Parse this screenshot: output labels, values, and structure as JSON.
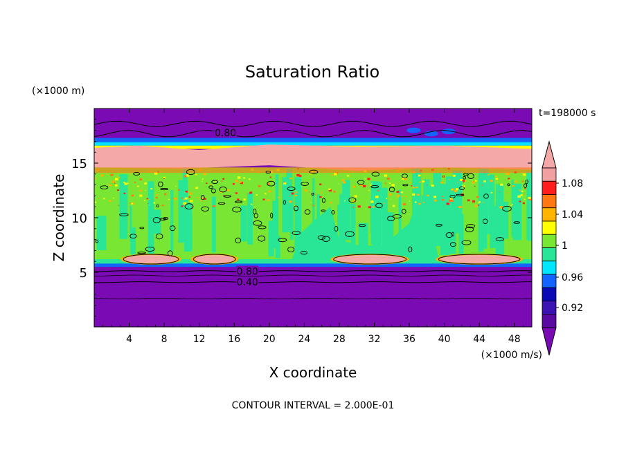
{
  "chart_data": {
    "type": "heatmap",
    "title": "Saturation Ratio",
    "xlabel": "X coordinate",
    "ylabel": "Z coordinate",
    "x_unit": "(×1000 m/s)",
    "y_unit": "(×1000 m)",
    "time_label": "t=198000 s",
    "footer": "CONTOUR INTERVAL = 2.000E-01",
    "xlim": [
      0,
      50
    ],
    "ylim": [
      0,
      20
    ],
    "x_ticks": [
      4,
      8,
      12,
      16,
      20,
      24,
      28,
      32,
      36,
      40,
      44,
      48
    ],
    "y_ticks": [
      5,
      10,
      15
    ],
    "contour_labels": [
      {
        "text": "0.80",
        "x": 15,
        "y": 17.8
      },
      {
        "text": "0.80",
        "x": 17.5,
        "y": 5.1
      },
      {
        "text": "0.40",
        "x": 17.5,
        "y": 4.1
      }
    ],
    "colorbar": {
      "levels": [
        0.92,
        0.96,
        1,
        1.04,
        1.08
      ],
      "tick_labels": [
        "0.92",
        "0.96",
        "1",
        "1.04",
        "1.08"
      ],
      "colors": [
        "#5a0aa0",
        "#3c14b4",
        "#0a0ab4",
        "#1464ff",
        "#00e6ff",
        "#28e696",
        "#78e632",
        "#ffff00",
        "#ffb400",
        "#ff7814",
        "#ff1e1e",
        "#f0a0a0"
      ],
      "lower_extend_color": "#7a0ab4",
      "upper_extend_color": "#f4a8a8"
    }
  }
}
